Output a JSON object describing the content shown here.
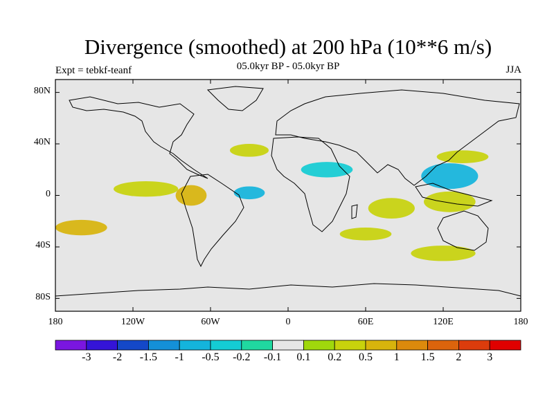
{
  "title": "Divergence (smoothed) at 200 hPa (10**6 m/s)",
  "experiment": "Expt = tebkf-teanf",
  "period": "05.0kyr BP - 05.0kyr BP",
  "season": "JJA",
  "colors": {
    "land_background": "#e6e6e6",
    "coastline": "#000000"
  },
  "axes": {
    "y_ticks": [
      "80N",
      "40N",
      "0",
      "40S",
      "80S"
    ],
    "x_ticks": [
      "180",
      "120W",
      "60W",
      "0",
      "60E",
      "120E",
      "180"
    ]
  },
  "colorbar": {
    "labels": [
      "-3",
      "-2",
      "-1.5",
      "-1",
      "-0.5",
      "-0.2",
      "-0.1",
      "0.1",
      "0.2",
      "0.5",
      "1",
      "1.5",
      "2",
      "3"
    ],
    "colors": [
      "#7a16e0",
      "#3414d8",
      "#1448c8",
      "#1490d8",
      "#14b4dc",
      "#14ccd4",
      "#20d8a0",
      "#e6e6e6",
      "#a0d80c",
      "#c8d20c",
      "#d8b40c",
      "#dc8a0c",
      "#dc640c",
      "#dc3c0c",
      "#e00000"
    ]
  },
  "chart_data": {
    "type": "heatmap",
    "title": "Divergence (smoothed) at 200 hPa (10**6 m/s)",
    "projection": "cylindrical equidistant",
    "lon_range": [
      -180,
      180
    ],
    "lat_range": [
      -90,
      90
    ],
    "units": "10**6 m/s",
    "levels": [
      -3,
      -2,
      -1.5,
      -1,
      -0.5,
      -0.2,
      -0.1,
      0.1,
      0.2,
      0.5,
      1,
      1.5,
      2,
      3
    ],
    "regions": [
      {
        "name": "west-pacific-tropics",
        "lon": 125,
        "lat": 15,
        "rx": 22,
        "ry": 10,
        "class": "-0.5"
      },
      {
        "name": "indonesia",
        "lon": 125,
        "lat": -5,
        "rx": 20,
        "ry": 8,
        "class": "0.2"
      },
      {
        "name": "central-indian-ocean",
        "lon": 80,
        "lat": -10,
        "rx": 18,
        "ry": 8,
        "class": "0.2"
      },
      {
        "name": "eastern-pacific",
        "lon": -110,
        "lat": 5,
        "rx": 25,
        "ry": 6,
        "class": "0.2"
      },
      {
        "name": "south-america-core",
        "lon": -75,
        "lat": 0,
        "rx": 12,
        "ry": 8,
        "class": "0.5"
      },
      {
        "name": "equatorial-atlantic",
        "lon": -30,
        "lat": 2,
        "rx": 12,
        "ry": 5,
        "class": "-0.5"
      },
      {
        "name": "north-africa",
        "lon": 30,
        "lat": 20,
        "rx": 20,
        "ry": 6,
        "class": "-0.2"
      },
      {
        "name": "south-pacific",
        "lon": -160,
        "lat": -25,
        "rx": 20,
        "ry": 6,
        "class": "0.5"
      },
      {
        "name": "southern-indian-ocean",
        "lon": 60,
        "lat": -30,
        "rx": 20,
        "ry": 5,
        "class": "0.2"
      },
      {
        "name": "southern-ocean",
        "lon": 120,
        "lat": -45,
        "rx": 25,
        "ry": 6,
        "class": "0.2"
      },
      {
        "name": "north-atlantic",
        "lon": -30,
        "lat": 35,
        "rx": 15,
        "ry": 5,
        "class": "0.2"
      },
      {
        "name": "east-asia",
        "lon": 135,
        "lat": 30,
        "rx": 20,
        "ry": 5,
        "class": "0.2"
      }
    ]
  }
}
